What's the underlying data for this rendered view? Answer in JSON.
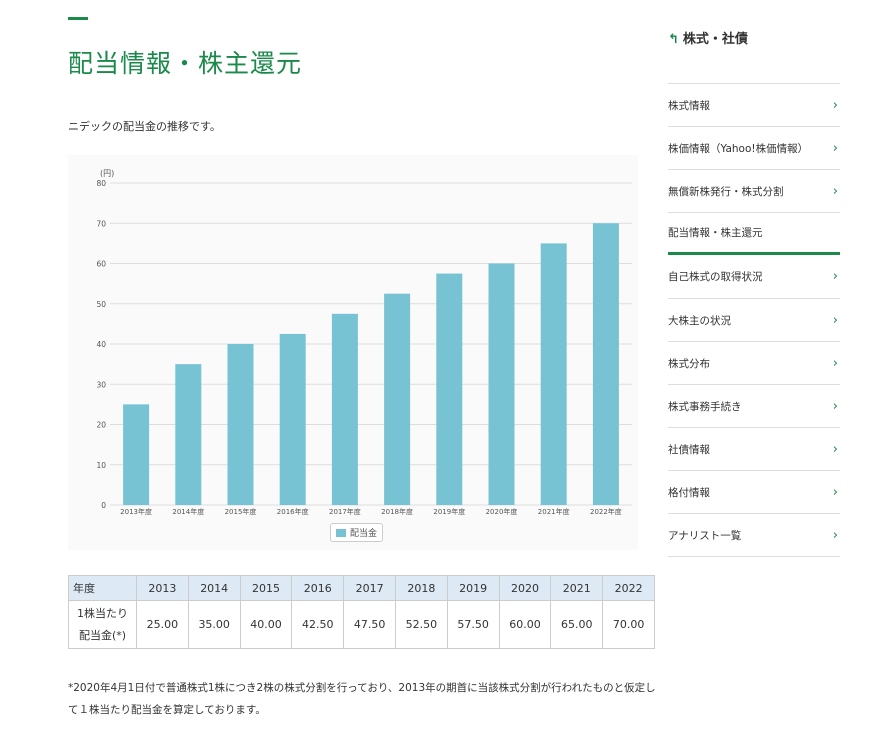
{
  "page": {
    "title": "配当情報・株主還元",
    "intro": "ニデックの配当金の推移です。"
  },
  "chart_data": {
    "type": "bar",
    "ylabel": "(円)",
    "ylim": [
      0,
      80
    ],
    "yticks": [
      0,
      10,
      20,
      30,
      40,
      50,
      60,
      70,
      80
    ],
    "categories": [
      "2013年度",
      "2014年度",
      "2015年度",
      "2016年度",
      "2017年度",
      "2018年度",
      "2019年度",
      "2020年度",
      "2021年度",
      "2022年度"
    ],
    "series": [
      {
        "name": "配当金",
        "values": [
          25,
          35,
          40,
          42.5,
          47.5,
          52.5,
          57.5,
          60,
          65,
          70
        ],
        "color": "#77c3d4"
      }
    ],
    "grid": true,
    "legend": "bottom"
  },
  "table": {
    "header": [
      "年度",
      "2013",
      "2014",
      "2015",
      "2016",
      "2017",
      "2018",
      "2019",
      "2020",
      "2021",
      "2022"
    ],
    "row_label_1": "1株当たり",
    "row_label_2": "配当金(*)",
    "values": [
      "25.00",
      "35.00",
      "40.00",
      "42.50",
      "47.50",
      "52.50",
      "57.50",
      "60.00",
      "65.00",
      "70.00"
    ]
  },
  "note": "*2020年4月1日付で普通株式1株につき2株の株式分割を行っており、2013年の期首に当該株式分割が行われたものと仮定して１株当たり配当金を算定しております。",
  "sidebar": {
    "back_icon": "↰",
    "back_label": "株式・社債",
    "chevron": "›",
    "items": [
      {
        "label": "株式情報"
      },
      {
        "label": "株価情報（Yahoo!株価情報）"
      },
      {
        "label": "無償新株発行・株式分割"
      },
      {
        "label": "配当情報・株主還元",
        "active": true
      },
      {
        "label": "自己株式の取得状況"
      },
      {
        "label": "大株主の状況"
      },
      {
        "label": "株式分布"
      },
      {
        "label": "株式事務手続き"
      },
      {
        "label": "社債情報"
      },
      {
        "label": "格付情報"
      },
      {
        "label": "アナリスト一覧"
      }
    ]
  }
}
